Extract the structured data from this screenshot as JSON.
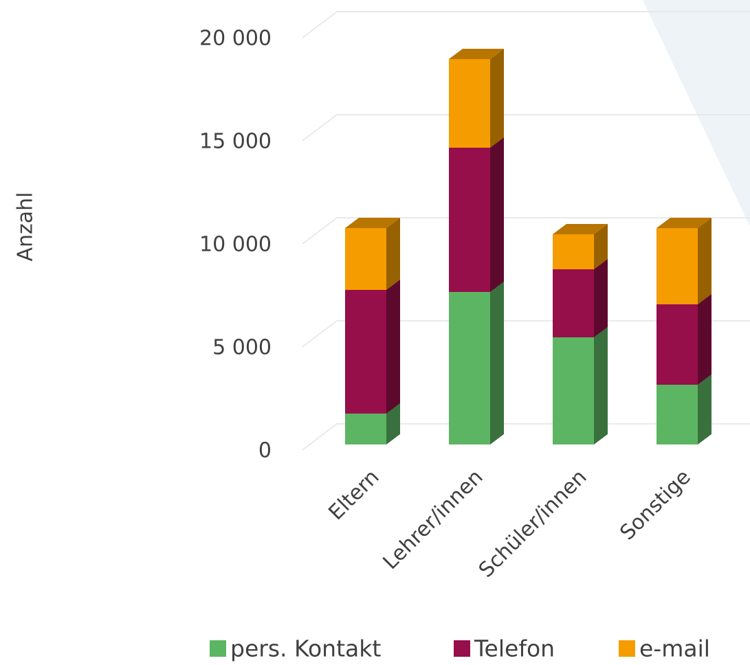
{
  "chart_data": {
    "type": "bar",
    "stacked": true,
    "y_label": "Anzahl",
    "categories": [
      "Eltern",
      "Lehrer/innen",
      "Schüler/innen",
      "Sonstige"
    ],
    "series": [
      {
        "name": "pers. Kontakt",
        "color": "#5cb562",
        "values": [
          1500,
          7400,
          5200,
          2900
        ]
      },
      {
        "name": "Telefon",
        "color": "#960e4a",
        "values": [
          6000,
          7000,
          3300,
          3900
        ]
      },
      {
        "name": "e-mail",
        "color": "#f59c00",
        "values": [
          3000,
          4300,
          1700,
          3700
        ]
      }
    ],
    "ylim": [
      0,
      20000
    ],
    "yticks": [
      0,
      {
        "value": 5000,
        "label": "5 000"
      },
      {
        "value": 10000,
        "label": "10 000"
      },
      {
        "value": 15000,
        "label": "15 000"
      },
      {
        "value": 20000,
        "label": "20 000"
      }
    ],
    "grid": true,
    "legend": "bottom"
  }
}
